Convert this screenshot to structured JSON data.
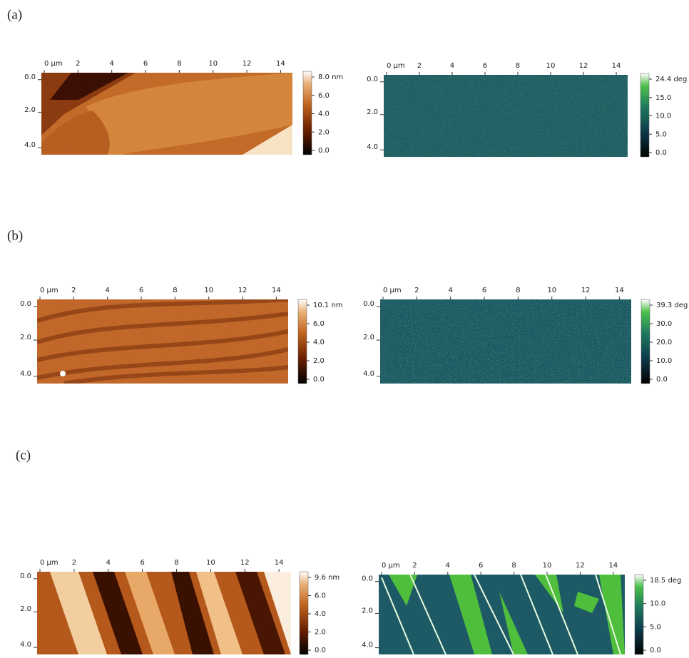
{
  "panels": [
    {
      "label": "(a)",
      "images": [
        {
          "x_ticks": [
            "0 µm",
            "2",
            "4",
            "6",
            "8",
            "10",
            "12",
            "14"
          ],
          "y_ticks": [
            "0.0",
            "2.0",
            "4.0"
          ],
          "colorbar_ticks": [
            "8.0 nm",
            "6.0",
            "4.0",
            "2.0",
            "0.0"
          ]
        },
        {
          "x_ticks": [
            "0 µm",
            "2",
            "4",
            "6",
            "8",
            "10",
            "12",
            "14"
          ],
          "y_ticks": [
            "0.0",
            "2.0",
            "4.0"
          ],
          "colorbar_ticks": [
            "24.4 deg",
            "15.0",
            "10.0",
            "5.0",
            "0.0"
          ]
        }
      ]
    },
    {
      "label": "(b)",
      "images": [
        {
          "x_ticks": [
            "0 µm",
            "2",
            "4",
            "6",
            "8",
            "10",
            "12",
            "14"
          ],
          "y_ticks": [
            "0.0",
            "2.0",
            "4.0"
          ],
          "colorbar_ticks": [
            "10.1 nm",
            "6.0",
            "4.0",
            "2.0",
            "0.0"
          ]
        },
        {
          "x_ticks": [
            "0 µm",
            "2",
            "4",
            "6",
            "8",
            "10",
            "12",
            "14"
          ],
          "y_ticks": [
            "0.0",
            "2.0",
            "4.0"
          ],
          "colorbar_ticks": [
            "39.3 deg",
            "30.0",
            "20.0",
            "10.0",
            "0.0"
          ]
        }
      ]
    },
    {
      "label": "(c)",
      "images": [
        {
          "x_ticks": [
            "0 µm",
            "2",
            "4",
            "6",
            "8",
            "10",
            "12",
            "14"
          ],
          "y_ticks": [
            "0.0",
            "2.0",
            "4.0"
          ],
          "colorbar_ticks": [
            "9.6 nm",
            "6.0",
            "4.0",
            "2.0",
            "0.0"
          ]
        },
        {
          "x_ticks": [
            "0 µm",
            "2",
            "4",
            "6",
            "8",
            "10",
            "12",
            "14"
          ],
          "y_ticks": [
            "0.0",
            "2.0",
            "4.0"
          ],
          "colorbar_ticks": [
            "18.5 deg",
            "10.0",
            "5.0",
            "0.0"
          ]
        }
      ]
    }
  ]
}
